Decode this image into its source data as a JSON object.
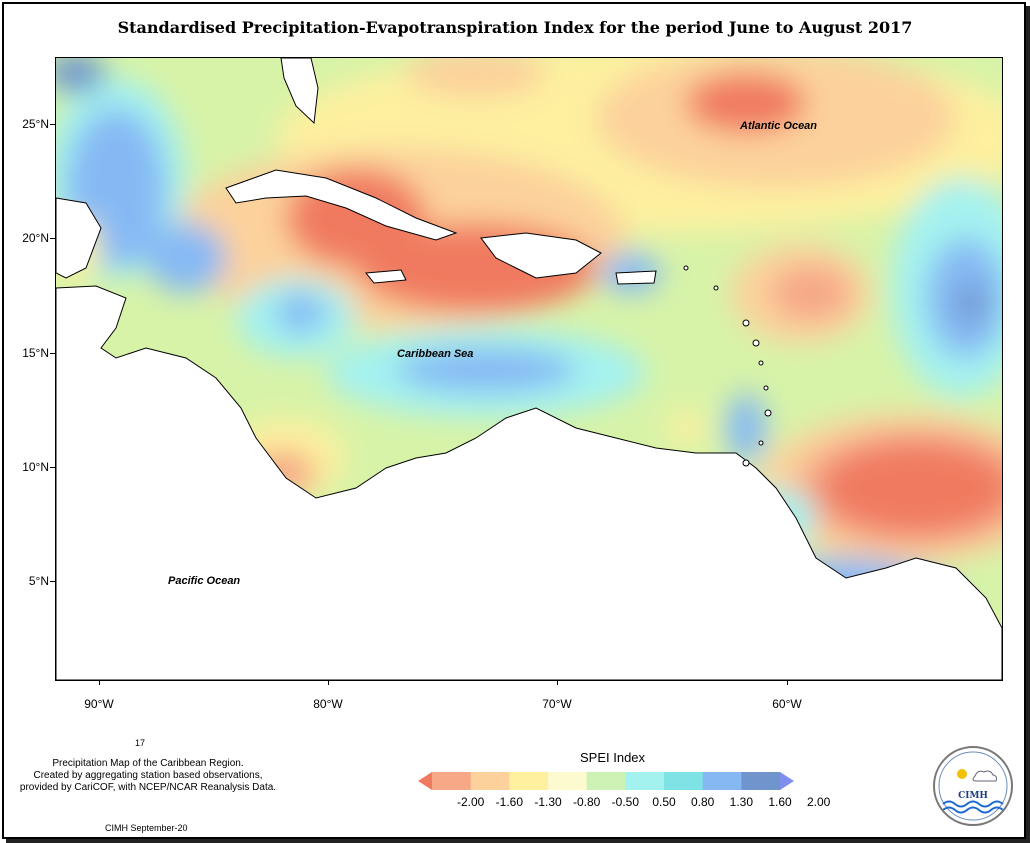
{
  "title": "Standardised Precipitation-Evapotranspiration Index for the period June to August 2017",
  "lat_labels": [
    "25°N",
    "20°N",
    "15°N",
    "10°N",
    "5°N"
  ],
  "lon_labels": [
    "90°W",
    "80°W",
    "70°W",
    "60°W"
  ],
  "map_labels": {
    "atlantic": "Atlantic Ocean",
    "caribbean": "Caribbean Sea",
    "pacific": "Pacific Ocean"
  },
  "footnote_number": "17",
  "notes": {
    "line1": "Precipitation Map of the Caribbean Region.",
    "line2": "Created by aggregating station based observations,",
    "line3": "provided by CariCOF, with NCEP/NCAR Reanalysis Data.",
    "credit": "CIMH September-20"
  },
  "legend": {
    "title": "SPEI Index",
    "labels": [
      "-2.00",
      "-1.60",
      "-1.30",
      "-0.80",
      "-0.50",
      "0.50",
      "0.80",
      "1.30",
      "1.60",
      "2.00"
    ],
    "colors": [
      "#f07a60",
      "#f6a887",
      "#fcd19c",
      "#fdf09f",
      "#fdfad0",
      "#ccf2b6",
      "#a4f2f0",
      "#7fe3e6",
      "#86b9f4",
      "#6f95cc",
      "#7f8ff0"
    ]
  },
  "logo": {
    "name": "CIMH"
  }
}
